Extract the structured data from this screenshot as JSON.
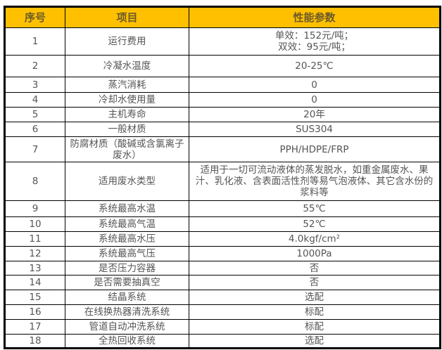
{
  "colors": {
    "header_bg": "#FFC000"
  },
  "headers": [
    "序号",
    "项目",
    "性能参数"
  ],
  "rows": [
    {
      "no": "1",
      "item": "运行费用",
      "value": "单效：152元/吨；\n双效：95元/吨；"
    },
    {
      "no": "2",
      "item": "冷凝水温度",
      "value": "20-25℃"
    },
    {
      "no": "3",
      "item": "蒸汽消耗",
      "value": "0"
    },
    {
      "no": "4",
      "item": "冷却水使用量",
      "value": "0"
    },
    {
      "no": "5",
      "item": "主机寿命",
      "value": "20年"
    },
    {
      "no": "6",
      "item": "一般材质",
      "value": "SUS304"
    },
    {
      "no": "7",
      "item": "防腐材质（酸碱或含氯离子废水）",
      "value": "PPH/HDPE/FRP"
    },
    {
      "no": "8",
      "item": "适用废水类型",
      "value": "适用于一切可流动液体的蒸发脱水，如重金属废水、果汁、乳化液、含表面活性剂等易气泡液体、其它含水份的浆料等"
    },
    {
      "no": "9",
      "item": "系统最高水温",
      "value": "55℃"
    },
    {
      "no": "10",
      "item": "系统最高气温",
      "value": "52℃"
    },
    {
      "no": "11",
      "item": "系统最高水压",
      "value": "4.0kgf/cm²"
    },
    {
      "no": "12",
      "item": "系统最高气压",
      "value": "1000Pa"
    },
    {
      "no": "13",
      "item": "是否压力容器",
      "value": "否"
    },
    {
      "no": "14",
      "item": "是否需要抽真空",
      "value": "否"
    },
    {
      "no": "15",
      "item": "结晶系统",
      "value": "选配"
    },
    {
      "no": "16",
      "item": "在线换热器清洗系统",
      "value": "标配"
    },
    {
      "no": "17",
      "item": "管道自动冲洗系统",
      "value": "标配"
    },
    {
      "no": "18",
      "item": "全热回收系统",
      "value": "选配"
    }
  ]
}
